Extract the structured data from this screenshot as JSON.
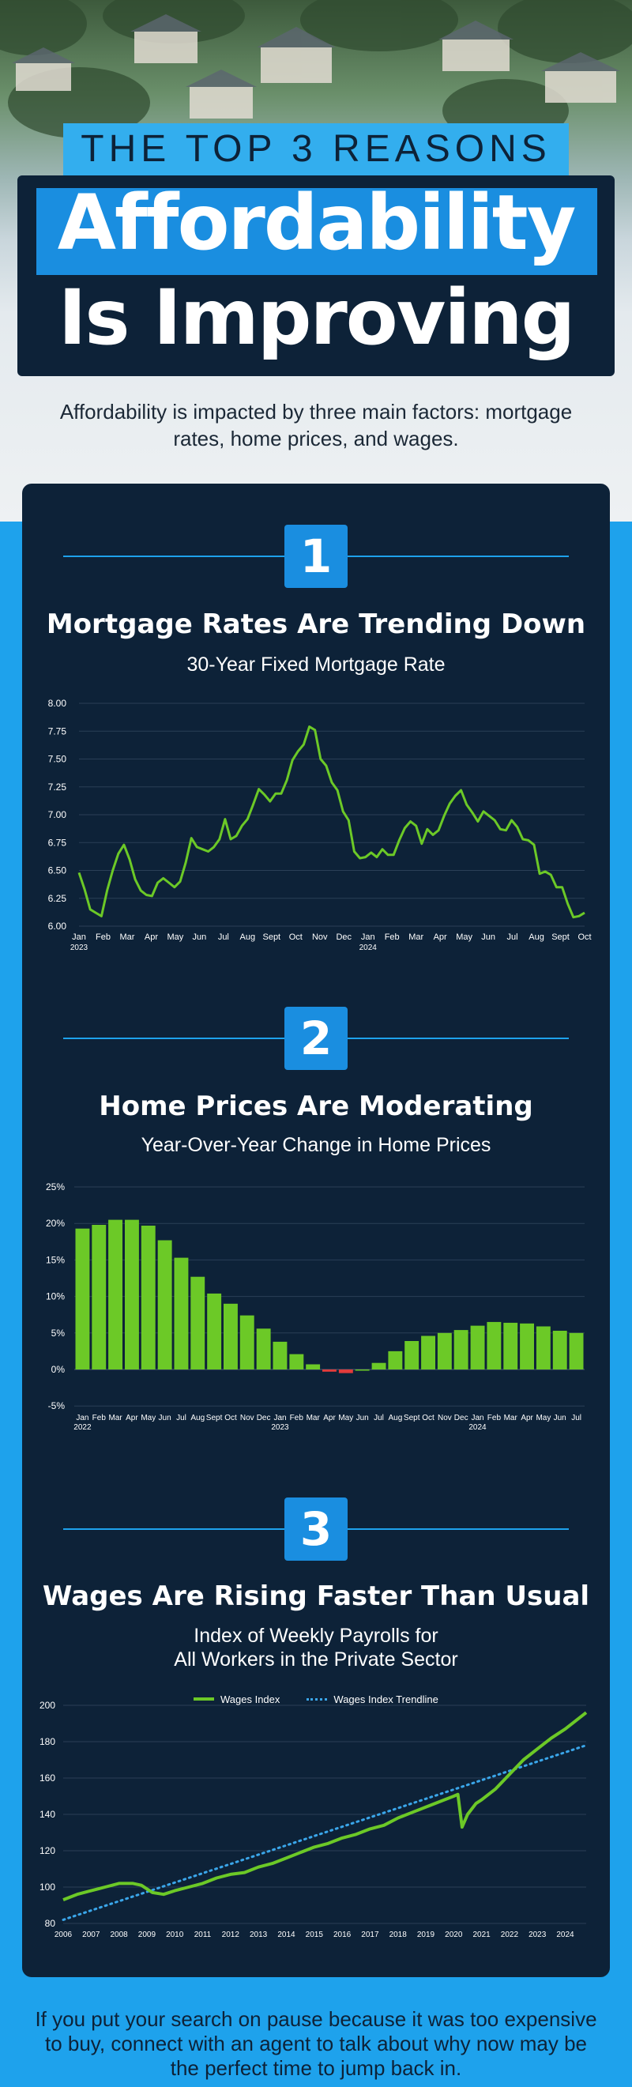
{
  "header": {
    "kicker": "THE TOP 3 REASONS",
    "title_line1": "Affordability",
    "title_line2": "Is Improving"
  },
  "intro": "Affordability is impacted by three main factors: mortgage rates, home prices, and wages.",
  "colors": {
    "navy": "#0d2238",
    "blue": "#1a8ee0",
    "sky": "#1ea2ec",
    "green": "#6cc927",
    "red": "#e23b3b"
  },
  "sections": [
    {
      "number": "1",
      "title": "Mortgage Rates Are Trending Down",
      "subtitle": "30-Year Fixed Mortgage Rate"
    },
    {
      "number": "2",
      "title": "Home Prices Are Moderating",
      "subtitle": "Year-Over-Year Change in Home Prices"
    },
    {
      "number": "3",
      "title": "Wages Are Rising Faster Than Usual",
      "subtitle_line1": "Index of Weekly Payrolls for",
      "subtitle_line2": "All Workers in the Private Sector"
    }
  ],
  "chart_data": [
    {
      "type": "line",
      "title": "30-Year Fixed Mortgage Rate",
      "ylim": [
        6.0,
        8.0
      ],
      "y_ticks": [
        "8.00",
        "7.75",
        "7.50",
        "7.25",
        "7.00",
        "6.75",
        "6.50",
        "6.25",
        "6.00"
      ],
      "x_ticks": [
        "Jan",
        "Feb",
        "Mar",
        "Apr",
        "May",
        "Jun",
        "Jul",
        "Aug",
        "Sept",
        "Oct",
        "Nov",
        "Dec",
        "Jan",
        "Feb",
        "Mar",
        "Apr",
        "May",
        "Jun",
        "Jul",
        "Aug",
        "Sept",
        "Oct"
      ],
      "year_labels": [
        "2023",
        "2024"
      ],
      "series": [
        {
          "name": "30-Year Fixed Mortgage Rate",
          "color": "#6cc927",
          "values": [
            6.48,
            6.33,
            6.15,
            6.12,
            6.09,
            6.32,
            6.5,
            6.65,
            6.73,
            6.6,
            6.42,
            6.32,
            6.28,
            6.27,
            6.39,
            6.43,
            6.39,
            6.35,
            6.4,
            6.57,
            6.79,
            6.71,
            6.69,
            6.67,
            6.71,
            6.78,
            6.96,
            6.78,
            6.81,
            6.9,
            6.96,
            7.09,
            7.23,
            7.18,
            7.12,
            7.19,
            7.19,
            7.31,
            7.49,
            7.57,
            7.63,
            7.79,
            7.76,
            7.5,
            7.44,
            7.29,
            7.22,
            7.03,
            6.95,
            6.67,
            6.61,
            6.62,
            6.66,
            6.62,
            6.69,
            6.64,
            6.64,
            6.77,
            6.88,
            6.94,
            6.9,
            6.74,
            6.87,
            6.82,
            6.86,
            6.99,
            7.1,
            7.17,
            7.22,
            7.09,
            7.02,
            6.94,
            7.03,
            6.99,
            6.95,
            6.87,
            6.86,
            6.95,
            6.89,
            6.78,
            6.77,
            6.73,
            6.47,
            6.49,
            6.46,
            6.35,
            6.35,
            6.2,
            6.08,
            6.09,
            6.12
          ]
        }
      ]
    },
    {
      "type": "bar",
      "title": "Year-Over-Year Change in Home Prices",
      "ylim": [
        -5,
        25
      ],
      "y_ticks": [
        "25%",
        "20%",
        "15%",
        "10%",
        "5%",
        "0%",
        "-5%"
      ],
      "categories": [
        "Jan",
        "Feb",
        "Mar",
        "Apr",
        "May",
        "Jun",
        "Jul",
        "Aug",
        "Sept",
        "Oct",
        "Nov",
        "Dec",
        "Jan",
        "Feb",
        "Mar",
        "Apr",
        "May",
        "Jun",
        "Jul",
        "Aug",
        "Sept",
        "Oct",
        "Nov",
        "Dec",
        "Jan",
        "Feb",
        "Mar",
        "Apr",
        "May",
        "Jun",
        "Jul"
      ],
      "year_labels": [
        "2022",
        "2023",
        "2024"
      ],
      "series": [
        {
          "name": "Year-Over-Year Change",
          "values": [
            19.3,
            19.8,
            20.5,
            20.5,
            19.7,
            17.7,
            15.3,
            12.7,
            10.4,
            9.0,
            7.4,
            5.6,
            3.8,
            2.1,
            0.7,
            -0.3,
            -0.5,
            0.0,
            0.9,
            2.5,
            3.9,
            4.6,
            5.0,
            5.4,
            6.0,
            6.5,
            6.4,
            6.3,
            5.9,
            5.3,
            5.0
          ]
        }
      ]
    },
    {
      "type": "line",
      "title": "Index of Weekly Payrolls for All Workers in the Private Sector",
      "ylim": [
        80,
        200
      ],
      "y_ticks": [
        "200",
        "180",
        "160",
        "140",
        "120",
        "100",
        "80"
      ],
      "x": [
        "2006",
        "2007",
        "2008",
        "2009",
        "2010",
        "2011",
        "2012",
        "2013",
        "2014",
        "2015",
        "2016",
        "2017",
        "2018",
        "2019",
        "2020",
        "2021",
        "2022",
        "2023",
        "2024"
      ],
      "legend": [
        "Wages Index",
        "Wages Index Trendline"
      ],
      "series": [
        {
          "name": "Wages Index",
          "color": "#6cc927",
          "points": [
            [
              2006.0,
              93
            ],
            [
              2006.5,
              96
            ],
            [
              2007.0,
              98
            ],
            [
              2007.5,
              100
            ],
            [
              2008.0,
              102
            ],
            [
              2008.5,
              102
            ],
            [
              2008.8,
              101
            ],
            [
              2009.2,
              97
            ],
            [
              2009.6,
              96
            ],
            [
              2010.0,
              98
            ],
            [
              2010.5,
              100
            ],
            [
              2011.0,
              102
            ],
            [
              2011.5,
              105
            ],
            [
              2012.0,
              107
            ],
            [
              2012.5,
              108
            ],
            [
              2013.0,
              111
            ],
            [
              2013.5,
              113
            ],
            [
              2014.0,
              116
            ],
            [
              2014.5,
              119
            ],
            [
              2015.0,
              122
            ],
            [
              2015.5,
              124
            ],
            [
              2016.0,
              127
            ],
            [
              2016.5,
              129
            ],
            [
              2017.0,
              132
            ],
            [
              2017.5,
              134
            ],
            [
              2018.0,
              138
            ],
            [
              2018.5,
              141
            ],
            [
              2019.0,
              144
            ],
            [
              2019.5,
              147
            ],
            [
              2020.0,
              150
            ],
            [
              2020.15,
              151
            ],
            [
              2020.3,
              133
            ],
            [
              2020.5,
              140
            ],
            [
              2020.8,
              146
            ],
            [
              2021.0,
              148
            ],
            [
              2021.5,
              154
            ],
            [
              2022.0,
              162
            ],
            [
              2022.5,
              170
            ],
            [
              2023.0,
              176
            ],
            [
              2023.5,
              182
            ],
            [
              2024.0,
              187
            ],
            [
              2024.5,
              193
            ],
            [
              2024.75,
              196
            ]
          ]
        },
        {
          "name": "Wages Index Trendline",
          "color": "#3aa6ea",
          "style": "dotted",
          "points": [
            [
              2006.0,
              82
            ],
            [
              2024.75,
              178
            ]
          ]
        }
      ]
    }
  ],
  "outro": "If you put your search on pause because it was too expensive to buy, connect with an agent to talk about why now may be the perfect time to jump back in."
}
